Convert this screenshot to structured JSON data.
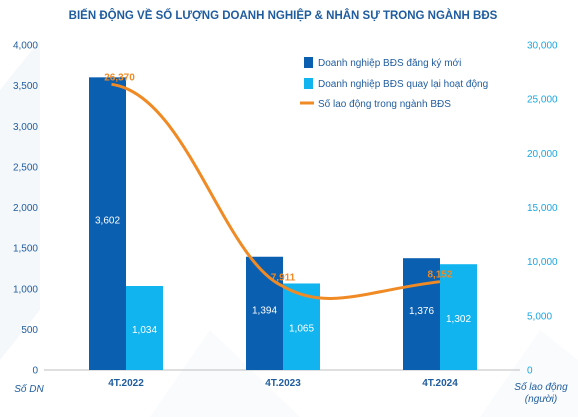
{
  "chart_data": {
    "type": "bar",
    "title": "BIẾN ĐỘNG VỀ SỐ LƯỢNG DOANH NGHIỆP & NHÂN SỰ TRONG NGÀNH BĐS",
    "categories": [
      "4T.2022",
      "4T.2023",
      "4T.2024"
    ],
    "y_left": {
      "label": "Số DN",
      "ticks": [
        "0",
        "500",
        "1,000",
        "1,500",
        "2,000",
        "2,500",
        "3,000",
        "3,500",
        "4,000"
      ],
      "range": [
        0,
        4000
      ]
    },
    "y_right": {
      "label_line1": "Số lao động",
      "label_line2": "(người)",
      "ticks": [
        "0",
        "5,000",
        "10,000",
        "15,000",
        "20,000",
        "25,000",
        "30,000"
      ],
      "range": [
        0,
        30000
      ]
    },
    "series": [
      {
        "name": "Doanh nghiệp BĐS đăng ký mới",
        "type": "bar",
        "axis": "left",
        "color": "#0b5fb0",
        "values": [
          3602,
          1394,
          1376
        ],
        "labels": [
          "3,602",
          "1,394",
          "1,376"
        ]
      },
      {
        "name": "Doanh nghiệp BĐS quay lại hoạt động",
        "type": "bar",
        "axis": "left",
        "color": "#11b4ee",
        "values": [
          1034,
          1065,
          1302
        ],
        "labels": [
          "1,034",
          "1,065",
          "1,302"
        ]
      },
      {
        "name": "Số lao động trong ngành BĐS",
        "type": "line",
        "axis": "right",
        "color": "#f08a24",
        "values": [
          26370,
          7911,
          8152
        ],
        "labels": [
          "26,370",
          "7,911",
          "8,152"
        ]
      }
    ],
    "legend_position": "top-right",
    "grid": false
  }
}
